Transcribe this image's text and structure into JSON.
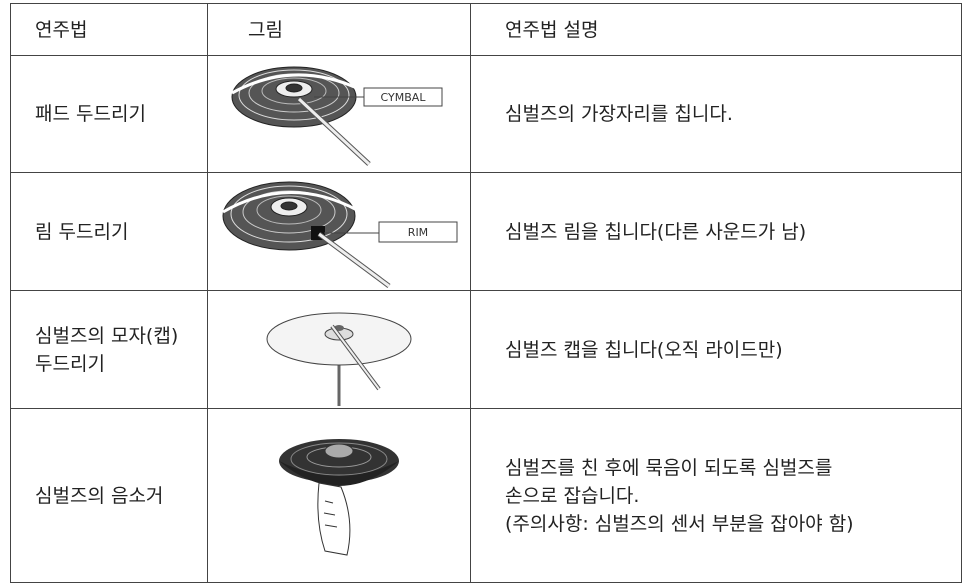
{
  "header": [
    "연주법",
    "그림",
    "연주법 설명"
  ],
  "rows": [
    {
      "method": [
        "패드 두드리기"
      ],
      "image_label": "CYMBAL",
      "description": [
        "심벌즈의 가장자리를 칩니다."
      ]
    },
    {
      "method": [
        "림 두드리기"
      ],
      "image_label": "RIM",
      "description": [
        "심벌즈 림을 칩니다(다른 사운드가 남)"
      ]
    },
    {
      "method": [
        "심벌즈의 모자(캡)",
        "두드리기"
      ],
      "description": [
        "심벌즈 캡을 칩니다(오직 라이드만)"
      ]
    },
    {
      "method": [
        "심벌즈의 음소거"
      ],
      "description": [
        "심벌즈를 친 후에 묵음이 되도록 심벌즈를",
        "손으로 잡습니다.",
        "(주의사항: 심벌즈의 센서 부분을 잡아야 함)"
      ]
    }
  ]
}
